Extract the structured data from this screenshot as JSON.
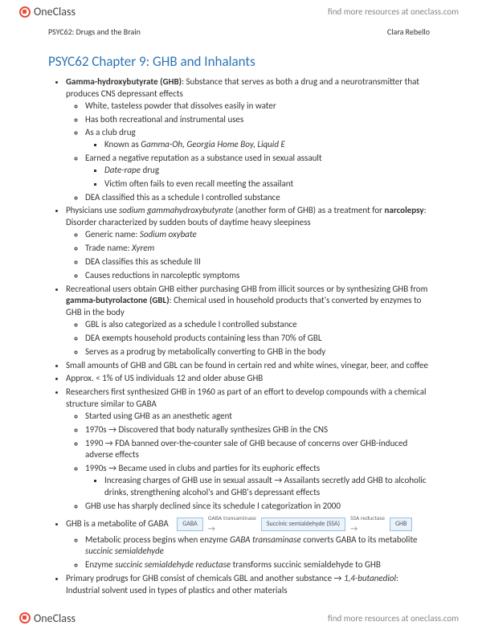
{
  "brand": {
    "name": "OneClass",
    "tagline": "find more resources at oneclass.com"
  },
  "header": {
    "course": "PSYC62: Drugs and the Brain",
    "author": "Clara Rebello"
  },
  "chapter": {
    "title": "PSYC62 Chapter 9: GHB and Inhalants"
  },
  "b1": {
    "term": "Gamma-hydroxybutyrate (GHB)",
    "def": ": Substance that serves as both a drug and a neurotransmitter that produces CNS depressant effects",
    "s1": "White, tasteless powder that dissolves easily in water",
    "s2": "Has both recreational and instrumental uses",
    "s3": "As a club drug",
    "s3a_pre": "Known as ",
    "s3a_it": "Gamma-Oh, Georgia Home Boy, Liquid E",
    "s4": "Earned a negative reputation as a substance used in sexual assault",
    "s4a_it": "Date-rape",
    "s4a_post": " drug",
    "s4b": "Victim often fails to even recall meeting the assailant",
    "s5": "DEA classified this as a schedule I controlled substance"
  },
  "b2": {
    "pre": "Physicians use ",
    "it1": "sodium gammahydroxybutyrate",
    "mid": " (another form of GHB) as a treatment for ",
    "term": "narcolepsy",
    "def": ": Disorder characterized by sudden bouts of daytime heavy sleepiness",
    "s1_pre": "Generic name: ",
    "s1_it": "Sodium oxybate",
    "s2_pre": "Trade name: ",
    "s2_it": "Xyrem",
    "s3": "DEA classifies this as schedule III",
    "s4": "Causes reductions in narcoleptic symptoms"
  },
  "b3": {
    "pre": "Recreational users obtain GHB either purchasing GHB from illicit sources or by synthesizing GHB from ",
    "term": "gamma-butyrolactone (GBL)",
    "def": ": Chemical used in household products that's converted by enzymes to GHB in the body",
    "s1": "GBL is also categorized as a schedule I controlled substance",
    "s2": "DEA exempts household products containing less than 70% of GBL",
    "s3": "Serves as a prodrug by metabolically converting to GHB in the body"
  },
  "b4": "Small amounts of GHB and GBL can be found in certain red and white wines, vinegar, beer, and coffee",
  "b5": "Approx. < 1% of US individuals 12 and older abuse GHB",
  "b6": {
    "main": "Researchers first synthesized GHB in 1960 as part of an effort to develop compounds with a chemical structure similar to GABA",
    "s1": "Started using GHB as an anesthetic agent",
    "s2": "1970s → Discovered that body naturally synthesizes GHB in the CNS",
    "s3": "1990 → FDA banned over-the-counter sale of GHB because of concerns over GHB-induced adverse effects",
    "s4": "1990s → Became used in clubs and parties for its euphoric effects",
    "s4a": "Increasing charges of GHB use in sexual assault → Assailants secretly add GHB to alcoholic drinks, strengthening alcohol's and GHB's depressant effects",
    "s5": "GHB use has sharply declined since its schedule I categorization in 2000"
  },
  "b7": {
    "main": "GHB is a metabolite of GABA",
    "s1": "Metabolic process begins when enzyme",
    "s1_it": "GABA transaminase",
    "s1_post": " converts GABA to its metabolite ",
    "s1_it2": "succinic semialdehyde",
    "s2_pre": "Enzyme ",
    "s2_it": "succinic semialdehyde reductase",
    "s2_post": " transforms succinic semialdehyde to GHB"
  },
  "b8": {
    "pre": "Primary prodrugs for GHB consist of chemicals GBL and another substance → ",
    "it": "1,4-butanediol",
    "post": ": Industrial solvent used in types of plastics and other materials"
  },
  "diagram": {
    "n1": "GABA",
    "e1": "GABA transaminase",
    "n2": "Succinic semialdehyde (SSA)",
    "e2": "SSA reductase",
    "n3": "GHB",
    "box_bg": "#eaf2fa",
    "box_border": "#9ac1e0"
  }
}
